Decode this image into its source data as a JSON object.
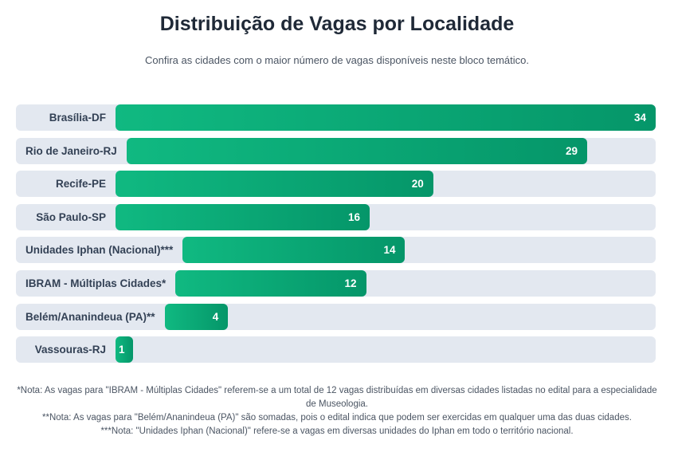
{
  "header": {
    "title": "Distribuição de Vagas por Localidade",
    "subtitle": "Confira as cidades com o maior número de vagas disponíveis neste bloco temático."
  },
  "chart_data": {
    "type": "bar",
    "orientation": "horizontal",
    "title": "Distribuição de Vagas por Localidade",
    "categories": [
      "Brasília-DF",
      "Rio de Janeiro-RJ",
      "Recife-PE",
      "São Paulo-SP",
      "Unidades Iphan (Nacional)***",
      "IBRAM - Múltiplas Cidades*",
      "Belém/Ananindeua (PA)**",
      "Vassouras-RJ"
    ],
    "values": [
      34,
      29,
      20,
      16,
      14,
      12,
      4,
      1
    ],
    "xlim": [
      0,
      34
    ],
    "xlabel": "",
    "ylabel": "",
    "bar_color": "#10b981",
    "bar_color_end": "#059669",
    "track_color": "#e3e8f0"
  },
  "notes": [
    "*Nota: As vagas para \"IBRAM - Múltiplas Cidades\" referem-se a um total de 12 vagas distribuídas em diversas cidades listadas no edital para a especialidade de Museologia.",
    "**Nota: As vagas para \"Belém/Ananindeua (PA)\" são somadas, pois o edital indica que podem ser exercidas em qualquer uma das duas cidades.",
    "***Nota: \"Unidades Iphan (Nacional)\" refere-se a vagas em diversas unidades do Iphan em todo o território nacional."
  ]
}
